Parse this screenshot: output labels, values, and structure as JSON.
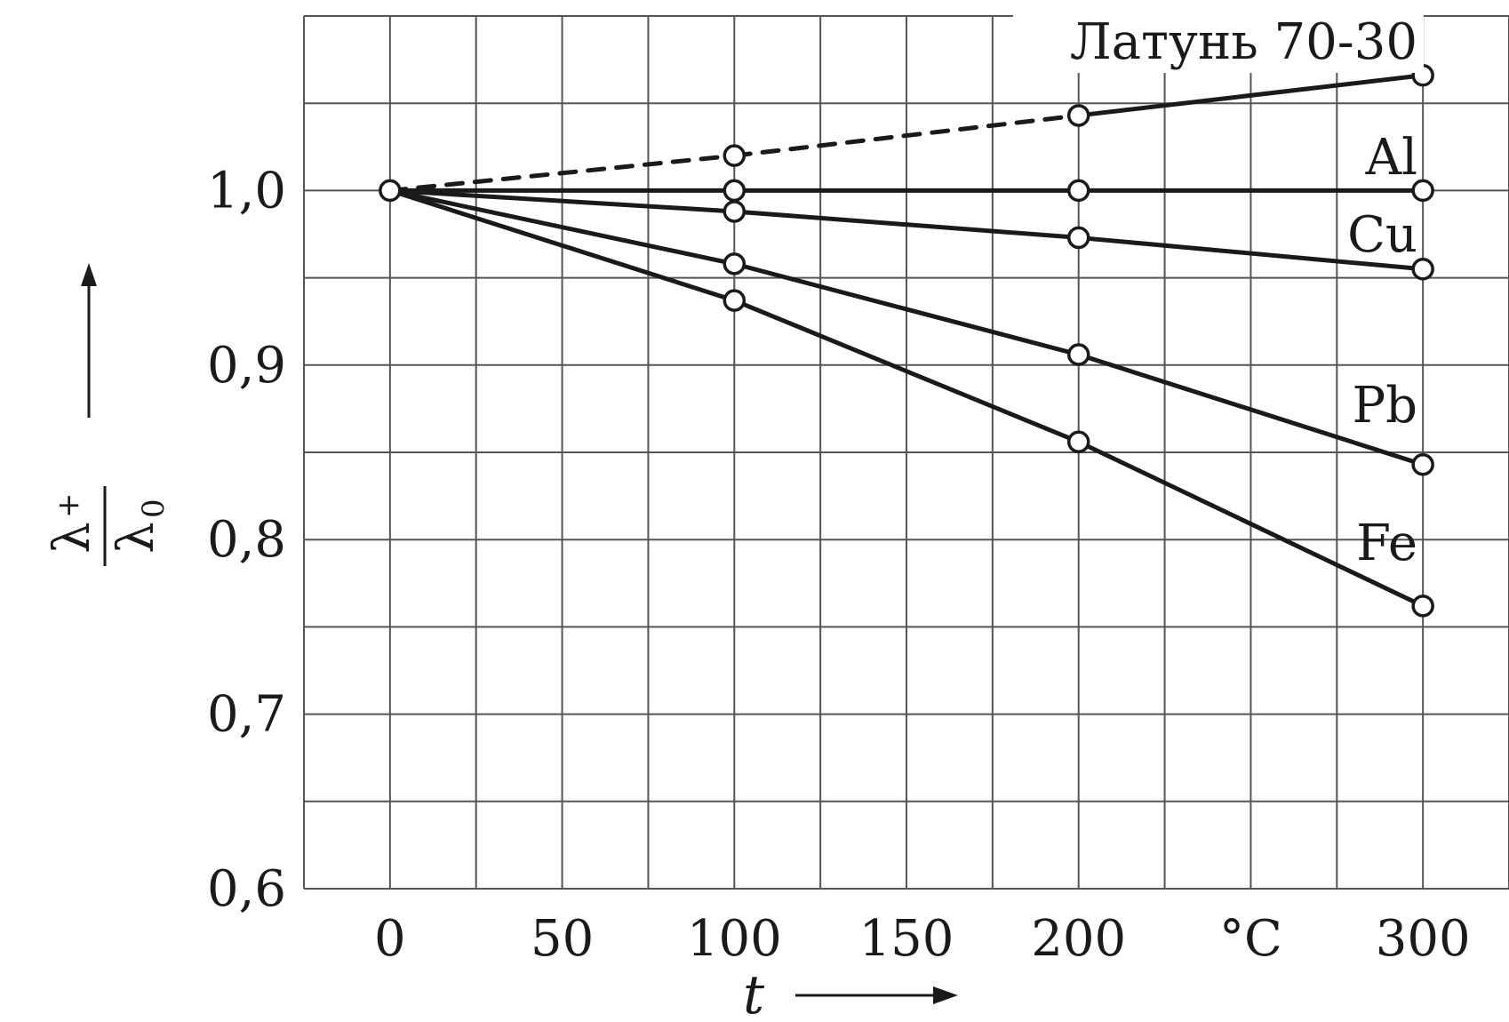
{
  "chart_data": {
    "type": "line",
    "xlabel": "t",
    "ylabel": {
      "numerator": "λ",
      "numerator_sub": "+",
      "denominator": "λ",
      "denominator_sub": "0"
    },
    "unit_label": "°C",
    "x_ticks": [
      "0",
      "50",
      "100",
      "150",
      "200",
      "300"
    ],
    "y_ticks": [
      "0,6",
      "0,7",
      "0,8",
      "0,9",
      "1,0"
    ],
    "xlim": [
      -25,
      325
    ],
    "ylim": [
      0.6,
      1.1
    ],
    "grid": true,
    "series": [
      {
        "name": "Латунь 70-30",
        "x": [
          0,
          100,
          200,
          300
        ],
        "y": [
          1.0,
          1.02,
          1.043,
          1.066
        ],
        "dashed_segments": [
          0,
          1
        ]
      },
      {
        "name": "Al",
        "x": [
          0,
          100,
          200,
          300
        ],
        "y": [
          1.0,
          1.0,
          1.0,
          1.0
        ]
      },
      {
        "name": "Cu",
        "x": [
          0,
          100,
          200,
          300
        ],
        "y": [
          1.0,
          0.988,
          0.973,
          0.955
        ]
      },
      {
        "name": "Pb",
        "x": [
          0,
          100,
          200,
          300
        ],
        "y": [
          1.0,
          0.958,
          0.906,
          0.843
        ]
      },
      {
        "name": "Fe",
        "x": [
          0,
          100,
          200,
          300
        ],
        "y": [
          1.0,
          0.937,
          0.856,
          0.762
        ]
      }
    ]
  }
}
